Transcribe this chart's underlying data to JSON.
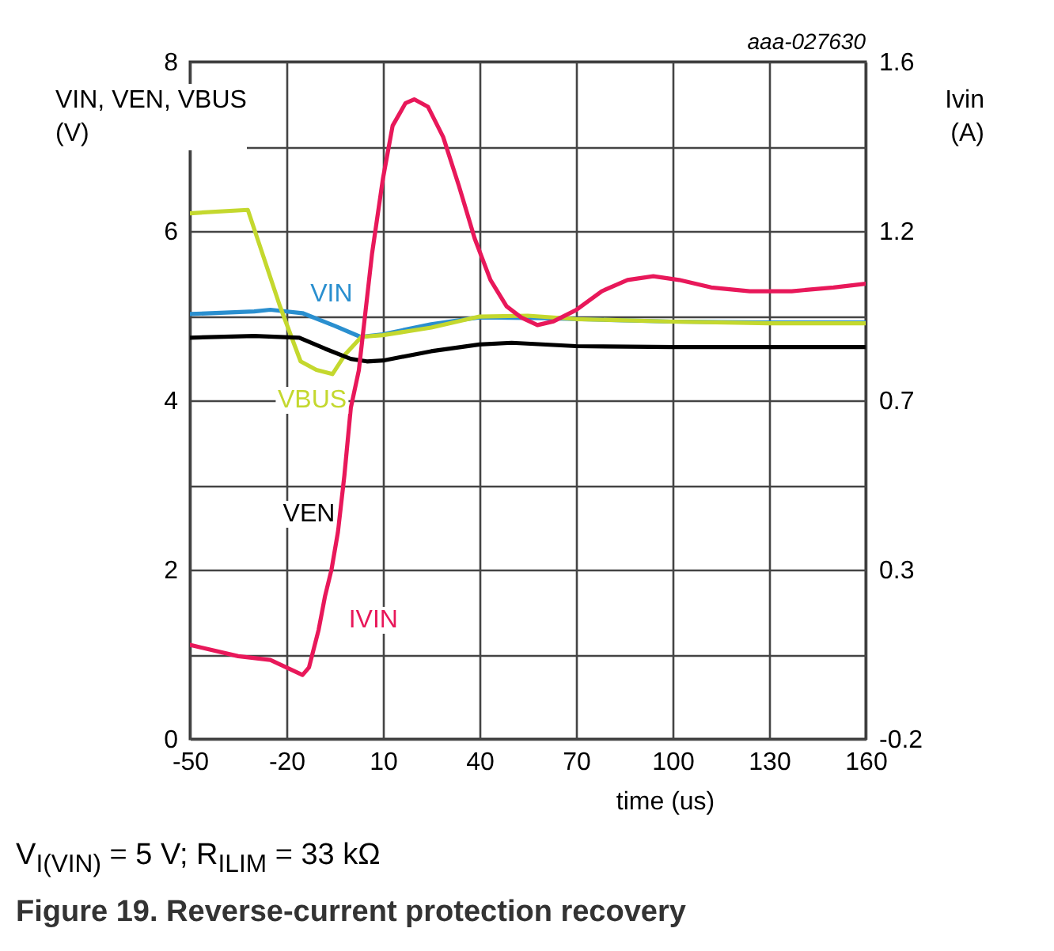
{
  "chart_data": {
    "type": "line",
    "title": "Figure 19.  Reverse-current protection recovery",
    "annotations": [
      "V$_{I(VIN)}$ = 5 V; R$_{ILIM}$ = 33 kΩ",
      "aaa-027630"
    ],
    "xlabel": "time (us)",
    "ylabel": "VIN, VEN, VBUS (V)",
    "y2label": "Ivin (A)",
    "xlim": [
      -50,
      160
    ],
    "xticks": [
      -50,
      -20,
      10,
      40,
      70,
      100,
      130,
      160
    ],
    "ylim": [
      0,
      8
    ],
    "yticks": [
      0,
      {
        "value": 1,
        "label": null
      },
      2,
      {
        "value": 3,
        "label": null
      },
      4,
      {
        "value": 5,
        "label": null
      },
      6,
      {
        "value": 7,
        "label": null
      },
      8
    ],
    "y2lim": [
      -0.2,
      1.6
    ],
    "y2ticks": [
      -0.2,
      {
        "value": 0.25,
        "label": "0.3"
      },
      0.7,
      {
        "value": 1.15,
        "label": "1.2"
      },
      1.6
    ],
    "grid": true,
    "legend": false,
    "series": [
      {
        "name": "VIN",
        "color": "#2a8fcf",
        "x": [
          -50,
          -30,
          -25,
          -15,
          -5,
          3,
          10,
          25,
          40,
          60,
          80,
          100,
          130,
          160
        ],
        "values": [
          5.02,
          5.05,
          5.07,
          5.03,
          4.88,
          4.75,
          4.78,
          4.9,
          4.98,
          4.97,
          4.95,
          4.93,
          4.92,
          4.92
        ]
      },
      {
        "name": "VBUS",
        "color": "#c4d82e",
        "x": [
          -50,
          -32,
          -22,
          -15.6,
          -10.7,
          -5.7,
          -1.6,
          3.3,
          10,
          25,
          40,
          55,
          70,
          100,
          130,
          160
        ],
        "values": [
          6.21,
          6.25,
          5.11,
          4.46,
          4.36,
          4.31,
          4.55,
          4.75,
          4.77,
          4.86,
          4.99,
          5.0,
          4.96,
          4.93,
          4.91,
          4.91
        ]
      },
      {
        "name": "VEN",
        "color": "#000000",
        "x": [
          -50,
          -30,
          -16,
          -8,
          0,
          5,
          10,
          25,
          40,
          50,
          70,
          100,
          130,
          160
        ],
        "values": [
          4.74,
          4.76,
          4.74,
          4.61,
          4.49,
          4.46,
          4.47,
          4.58,
          4.66,
          4.68,
          4.64,
          4.63,
          4.63,
          4.63
        ]
      },
      {
        "name": "IVIN",
        "color": "#e8185a",
        "axis": "y2",
        "x": [
          -50,
          -35,
          -25,
          -20,
          -15,
          -13,
          -10,
          -8,
          -6,
          -4,
          -2,
          0,
          2.5,
          6.6,
          10,
          13,
          17,
          19.7,
          24,
          28.7,
          33.6,
          38.5,
          43.4,
          48.4,
          53,
          58,
          63,
          70,
          78,
          86,
          94,
          102,
          112,
          124,
          137,
          150,
          160
        ],
        "values": [
          0.05,
          0.02,
          0.01,
          -0.01,
          -0.03,
          -0.01,
          0.09,
          0.18,
          0.25,
          0.35,
          0.5,
          0.68,
          0.78,
          1.09,
          1.29,
          1.43,
          1.49,
          1.5,
          1.48,
          1.4,
          1.27,
          1.13,
          1.02,
          0.95,
          0.92,
          0.9,
          0.91,
          0.94,
          0.99,
          1.02,
          1.03,
          1.02,
          1.0,
          0.99,
          0.99,
          1.0,
          1.01
        ]
      }
    ]
  }
}
